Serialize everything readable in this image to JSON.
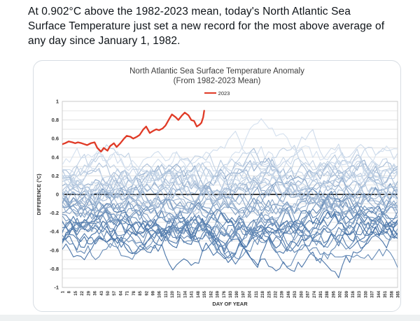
{
  "post": {
    "text_lines": [
      "At 0.902°C above the 1982-2023 mean, today's North Atlantic Sea",
      "Surface Temperature just set a new record for the most above average of",
      "any day since January 1, 1982."
    ]
  },
  "chart": {
    "title": "North Atlantic Sea Surface Temperature Anomaly",
    "subtitle": "(From 1982-2023 Mean)",
    "legend": {
      "label": "2023",
      "color": "#e03a26"
    },
    "xlabel": "DAY OF YEAR",
    "ylabel": "DIFFERENCE (°C)"
  },
  "chart_data": {
    "type": "line",
    "title": "North Atlantic Sea Surface Temperature Anomaly (From 1982-2023 Mean)",
    "xlabel": "DAY OF YEAR",
    "ylabel": "DIFFERENCE (°C)",
    "xlim": [
      1,
      365
    ],
    "ylim": [
      -1,
      1
    ],
    "x_tick_start": 1,
    "x_tick_step": 7,
    "x_tick_end": 365,
    "y_tick_step": 0.2,
    "y_minor_grid_step": 0.1,
    "grid": "horizontal minor gridlines every 0.1, bold black line at 0",
    "legend_position": "top-center",
    "axis_text_color": "#333333",
    "grid_color": "#d9d9d9",
    "zero_line_color": "#1a1a1a",
    "plot_border_color": "#c3c3c3",
    "highlight_series": {
      "name": "2023",
      "color": "#e03a26",
      "peak_value": 0.902,
      "x": [
        1,
        4,
        8,
        12,
        15,
        18,
        22,
        25,
        28,
        32,
        36,
        39,
        43,
        46,
        50,
        53,
        57,
        60,
        64,
        68,
        71,
        75,
        78,
        82,
        85,
        89,
        92,
        96,
        99,
        103,
        106,
        110,
        113,
        117,
        120,
        124,
        127,
        131,
        134,
        138,
        141,
        144,
        147,
        150,
        152,
        154,
        155
      ],
      "y": [
        0.54,
        0.55,
        0.57,
        0.56,
        0.55,
        0.56,
        0.55,
        0.54,
        0.53,
        0.55,
        0.56,
        0.5,
        0.46,
        0.5,
        0.47,
        0.52,
        0.55,
        0.51,
        0.55,
        0.6,
        0.63,
        0.62,
        0.6,
        0.62,
        0.64,
        0.7,
        0.73,
        0.66,
        0.68,
        0.7,
        0.69,
        0.71,
        0.74,
        0.81,
        0.86,
        0.83,
        0.8,
        0.85,
        0.88,
        0.85,
        0.8,
        0.79,
        0.73,
        0.75,
        0.77,
        0.83,
        0.9
      ]
    },
    "background_series": {
      "description": "One jagged daily line per year 1982-2022; older years darker blue and lower anomaly, recent years lighter blue and higher anomaly",
      "color_range": [
        "#35659e",
        "#d3dfee"
      ],
      "wiggle_amplitude": 0.18,
      "years": [
        1982,
        1983,
        1984,
        1985,
        1986,
        1987,
        1988,
        1989,
        1990,
        1991,
        1992,
        1993,
        1994,
        1995,
        1996,
        1997,
        1998,
        1999,
        2000,
        2001,
        2002,
        2003,
        2004,
        2005,
        2006,
        2007,
        2008,
        2009,
        2010,
        2011,
        2012,
        2013,
        2014,
        2015,
        2016,
        2017,
        2018,
        2019,
        2020,
        2021,
        2022
      ],
      "year_mean_offsets": [
        -0.42,
        -0.38,
        -0.48,
        -0.52,
        -0.5,
        -0.35,
        -0.42,
        -0.36,
        -0.3,
        -0.34,
        -0.46,
        -0.44,
        -0.38,
        -0.22,
        -0.3,
        -0.25,
        -0.12,
        -0.18,
        -0.2,
        -0.08,
        -0.05,
        0.02,
        -0.02,
        0.08,
        0.1,
        0.05,
        0.0,
        0.05,
        0.18,
        0.02,
        0.15,
        0.1,
        0.18,
        0.12,
        0.22,
        0.25,
        0.15,
        0.25,
        0.32,
        0.28,
        0.4
      ]
    }
  }
}
